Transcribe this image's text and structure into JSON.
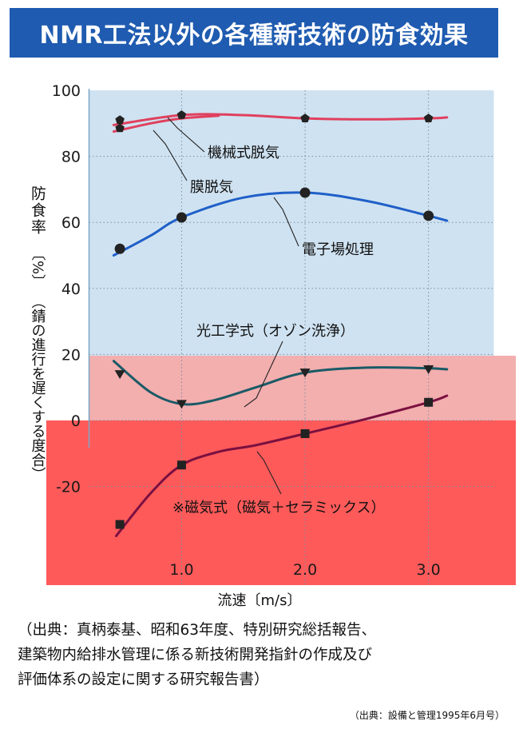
{
  "title": "NMR工法以外の各種新技術の防食効果",
  "chart_data": {
    "type": "line",
    "xlabel": "流速〔m/s〕",
    "ylabel_main": "防食率",
    "ylabel_unit": "〔%〕",
    "ylabel_desc": "（錆の進行を遅くする度合）",
    "xlim": [
      0.25,
      3.25
    ],
    "ylim": [
      -50,
      100
    ],
    "xticks": [
      {
        "value": 1.0,
        "label": "1.0"
      },
      {
        "value": 2.0,
        "label": "2.0"
      },
      {
        "value": 3.0,
        "label": "3.0"
      }
    ],
    "yticks": [
      {
        "value": 100,
        "label": "100"
      },
      {
        "value": 80,
        "label": "80"
      },
      {
        "value": 60,
        "label": "60"
      },
      {
        "value": 40,
        "label": "40"
      },
      {
        "value": 20,
        "label": "20"
      },
      {
        "value": 0,
        "label": "0"
      },
      {
        "value": -20,
        "label": "-20"
      }
    ],
    "series": [
      {
        "name": "機械式脱気",
        "color": "#e0405e",
        "marker": "pentagon",
        "x": [
          0.5,
          1.0,
          2.0,
          3.0
        ],
        "y": [
          91,
          92.5,
          91.5,
          91.5
        ],
        "curve": [
          [
            0.45,
            89.5
          ],
          [
            1.0,
            92.5
          ],
          [
            1.5,
            92.5
          ],
          [
            2.0,
            91.5
          ],
          [
            2.5,
            91.2
          ],
          [
            3.0,
            91.5
          ],
          [
            3.15,
            91.8
          ]
        ]
      },
      {
        "name": "膜脱気",
        "color": "#e0405e",
        "marker": "pentagon",
        "x": [
          0.5
        ],
        "y": [
          88.5
        ],
        "curve": [
          [
            0.45,
            87.5
          ],
          [
            0.75,
            90
          ],
          [
            1.0,
            91.5
          ],
          [
            1.3,
            92.3
          ]
        ]
      },
      {
        "name": "電子場処理",
        "color": "#1f5fc8",
        "marker": "circle",
        "x": [
          0.5,
          1.0,
          2.0,
          3.0
        ],
        "y": [
          52,
          61.5,
          69,
          62
        ],
        "curve": [
          [
            0.45,
            50
          ],
          [
            0.75,
            56
          ],
          [
            1.0,
            61.5
          ],
          [
            1.5,
            67.5
          ],
          [
            2.0,
            69
          ],
          [
            2.5,
            66.5
          ],
          [
            3.0,
            62
          ],
          [
            3.15,
            60.5
          ]
        ]
      },
      {
        "name": "光工学式（オゾン洗浄）",
        "color": "#1a5a66",
        "marker": "triangle-down",
        "x": [
          0.5,
          1.0,
          2.0,
          3.0
        ],
        "y": [
          14,
          5,
          14.5,
          15.5
        ],
        "curve": [
          [
            0.45,
            18
          ],
          [
            0.75,
            8.5
          ],
          [
            1.0,
            5
          ],
          [
            1.25,
            6
          ],
          [
            1.6,
            10
          ],
          [
            2.0,
            14.5
          ],
          [
            2.5,
            16
          ],
          [
            3.0,
            15.8
          ],
          [
            3.15,
            15.5
          ]
        ]
      },
      {
        "name": "※磁気式（磁気＋セラミックス）",
        "color": "#7a1040",
        "marker": "square",
        "x": [
          0.5,
          1.0,
          2.0,
          3.0
        ],
        "y": [
          -31.5,
          -13.5,
          -4,
          5.5
        ],
        "curve": [
          [
            0.47,
            -35
          ],
          [
            0.75,
            -22
          ],
          [
            1.0,
            -13.5
          ],
          [
            1.3,
            -9.5
          ],
          [
            1.6,
            -7.5
          ],
          [
            2.0,
            -4
          ],
          [
            2.5,
            0.5
          ],
          [
            3.0,
            5.5
          ],
          [
            3.15,
            7.5
          ]
        ]
      }
    ],
    "annotations": [
      {
        "text": "機械式脱気",
        "for": "機械式脱気"
      },
      {
        "text": "膜脱気",
        "for": "膜脱気"
      },
      {
        "text": "電子場処理",
        "for": "電子場処理"
      },
      {
        "text": "光工学式（オゾン洗浄）",
        "for": "光工学式（オゾン洗浄）"
      },
      {
        "text": "※磁気式（磁気＋セラミックス）",
        "for": "※磁気式（磁気＋セラミックス）"
      }
    ],
    "colors": {
      "background_high": "#cfe2f1",
      "background_mid": "#f3aeae",
      "background_low": "#ff5a5a"
    }
  },
  "source": {
    "line1": "（出典：真柄泰基、昭和63年度、特別研究総括報告、",
    "line2": "建築物内給排水管理に係る新技術開発指針の作成及び",
    "line3": "評価体系の設定に関する研究報告書）"
  },
  "footnote": "（出典：設備と管理1995年6月号）"
}
